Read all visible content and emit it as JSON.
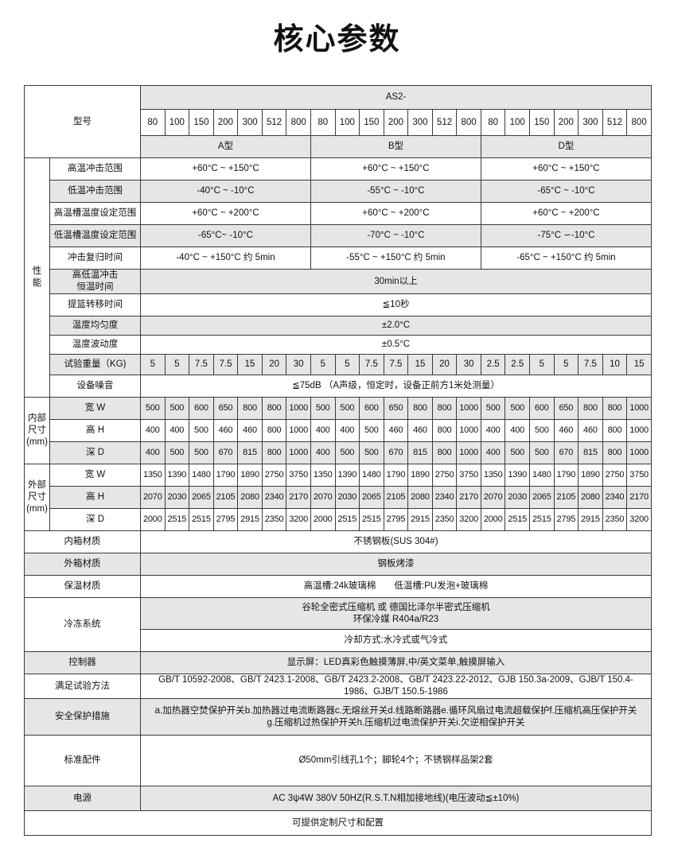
{
  "title": "核心参数",
  "header": {
    "model_label": "型号",
    "series": "AS2-",
    "models": [
      "80",
      "100",
      "150",
      "200",
      "300",
      "512",
      "800",
      "80",
      "100",
      "150",
      "200",
      "300",
      "512",
      "800",
      "80",
      "100",
      "150",
      "200",
      "300",
      "512",
      "800"
    ],
    "types": [
      "A型",
      "B型",
      "D型"
    ]
  },
  "performance": {
    "group_label": "性\n能",
    "rows": [
      {
        "label": "高温冲击范围",
        "values": [
          "+60°C ~ +150°C",
          "+60°C ~ +150°C",
          "+60°C ~ +150°C"
        ]
      },
      {
        "label": "低温冲击范围",
        "values": [
          "-40°C ~ -10°C",
          "-55°C ~ -10°C",
          "-65°C ~ -10°C"
        ]
      },
      {
        "label": "高温槽温度设定范围",
        "values": [
          "+60°C ~ +200°C",
          "+60°C ~ +200°C",
          "+60°C ~ +200°C"
        ]
      },
      {
        "label": "低温槽温度设定范围",
        "values": [
          "-65°C~ -10°C",
          "-70°C ~ -10°C",
          "-75°C ∽-10°C"
        ]
      },
      {
        "label": "冲击复归时间",
        "values": [
          "-40°C ~ +150°C 约 5min",
          "-55°C ~ +150°C 约 5min",
          "-65°C ~ +150°C 约 5min"
        ]
      },
      {
        "label": "高低温冲击\n恒温时间",
        "value": "30min以上"
      },
      {
        "label": "提篮转移时间",
        "value": "≦10秒"
      },
      {
        "label": "温度均匀度",
        "value": "±2.0°C"
      },
      {
        "label": "温度波动度",
        "value": "±0.5°C"
      },
      {
        "label": "试验重量（KG)",
        "cells": [
          "5",
          "5",
          "7.5",
          "7.5",
          "15",
          "20",
          "30",
          "5",
          "5",
          "7.5",
          "7.5",
          "15",
          "20",
          "30",
          "2.5",
          "2.5",
          "5",
          "5",
          "7.5",
          "10",
          "15"
        ]
      },
      {
        "label": "设备噪音",
        "value": "≦75dB （A声级，恒定时，设备正前方1米处测量）"
      }
    ]
  },
  "inner_dims": {
    "group_label": "内部\n尺寸\n(mm)",
    "rows": [
      {
        "label": "宽 W",
        "cells": [
          "500",
          "500",
          "600",
          "650",
          "800",
          "800",
          "1000",
          "500",
          "500",
          "600",
          "650",
          "800",
          "800",
          "1000",
          "500",
          "500",
          "600",
          "650",
          "800",
          "800",
          "1000"
        ]
      },
      {
        "label": "高 H",
        "cells": [
          "400",
          "400",
          "500",
          "460",
          "460",
          "800",
          "1000",
          "400",
          "400",
          "500",
          "460",
          "460",
          "800",
          "1000",
          "400",
          "400",
          "500",
          "460",
          "460",
          "800",
          "1000"
        ]
      },
      {
        "label": "深 D",
        "cells": [
          "400",
          "500",
          "500",
          "670",
          "815",
          "800",
          "1000",
          "400",
          "500",
          "500",
          "670",
          "815",
          "800",
          "1000",
          "400",
          "500",
          "500",
          "670",
          "815",
          "800",
          "1000"
        ]
      }
    ]
  },
  "outer_dims": {
    "group_label": "外部\n尺寸\n(mm)",
    "rows": [
      {
        "label": "宽 W",
        "cells": [
          "1350",
          "1390",
          "1480",
          "1790",
          "1890",
          "2750",
          "3750",
          "1350",
          "1390",
          "1480",
          "1790",
          "1890",
          "2750",
          "3750",
          "1350",
          "1390",
          "1480",
          "1790",
          "1890",
          "2750",
          "3750"
        ]
      },
      {
        "label": "高 H",
        "cells": [
          "2070",
          "2030",
          "2065",
          "2105",
          "2080",
          "2340",
          "2170",
          "2070",
          "2030",
          "2065",
          "2105",
          "2080",
          "2340",
          "2170",
          "2070",
          "2030",
          "2065",
          "2105",
          "2080",
          "2340",
          "2170"
        ]
      },
      {
        "label": "深 D",
        "cells": [
          "2000",
          "2515",
          "2515",
          "2795",
          "2915",
          "2350",
          "3200",
          "2000",
          "2515",
          "2515",
          "2795",
          "2915",
          "2350",
          "3200",
          "2000",
          "2515",
          "2515",
          "2795",
          "2915",
          "2350",
          "3200"
        ]
      }
    ]
  },
  "misc": [
    {
      "label": "内箱材质",
      "value": "不锈钢板(SUS 304#)"
    },
    {
      "label": "外箱材质",
      "value": "钢板烤漆"
    },
    {
      "label": "保温材质",
      "value": "高温槽:24k玻璃棉　　低温槽:PU发泡+玻璃棉"
    },
    {
      "label": "冷冻系统",
      "values": [
        "谷轮全密式压缩机 或 德国比泽尔半密式压缩机\n环保冷媒  R404a/R23",
        "冷却方式:水冷式或气冷式"
      ]
    },
    {
      "label": "控制器",
      "value": "显示屏：LED真彩色触摸薄屏,中/英文菜单,触摸屏输入"
    },
    {
      "label": "满足试验方法",
      "value": "GB/T 10592-2008、GB/T 2423.1-2008、GB/T 2423.2-2008、GB/T 2423.22-2012、GJB 150.3a-2009、GJB/T 150.4-1986、GJB/T 150.5-1986"
    },
    {
      "label": "安全保护措施",
      "value": "a.加热器空焚保护开关b.加热器过电流断路器c.无熔丝开关d.线路断路器e.循环风扇过电流超载保护f.压缩机高压保护开关　 g.压缩机过热保护开关h.压缩机过电流保护开关i.欠逆相保护开关"
    },
    {
      "label": "标准配件",
      "value": "Ø50mm引线孔1个；脚轮4个；不锈钢样品架2套"
    },
    {
      "label": "电源",
      "value": "AC 3ψ4W 380V 50HZ(R.S.T.N相加接地线)(电压波动≦±10%)"
    }
  ],
  "footer_note": "可提供定制尺寸和配置"
}
